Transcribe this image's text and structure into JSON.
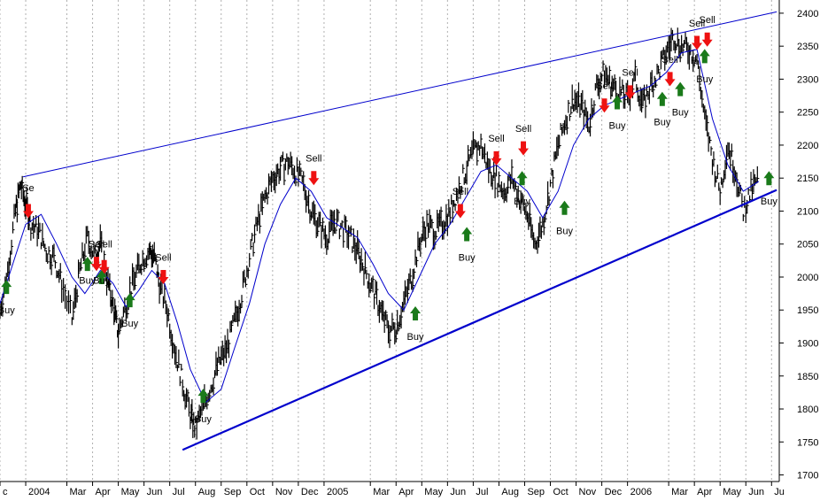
{
  "chart_data": {
    "type": "line",
    "title": "",
    "xlabel": "",
    "ylabel": "",
    "ylim": [
      1690,
      2420
    ],
    "grid": "vertical dotted",
    "y_axis_position": "right",
    "x_range": [
      0,
      30.3
    ],
    "y_ticks": [
      1700,
      1750,
      1800,
      1850,
      1900,
      1950,
      2000,
      2050,
      2100,
      2150,
      2200,
      2250,
      2300,
      2350,
      2400
    ],
    "x_ticks": [
      {
        "label": "c",
        "x": 0
      },
      {
        "label": "2004",
        "x": 1
      },
      {
        "label": "Mar",
        "x": 2.6
      },
      {
        "label": "Apr",
        "x": 3.6
      },
      {
        "label": "May",
        "x": 4.6
      },
      {
        "label": "Jun",
        "x": 5.6
      },
      {
        "label": "Jul",
        "x": 6.6
      },
      {
        "label": "Aug",
        "x": 7.6
      },
      {
        "label": "Sep",
        "x": 8.6
      },
      {
        "label": "Oct",
        "x": 9.6
      },
      {
        "label": "Nov",
        "x": 10.6
      },
      {
        "label": "Dec",
        "x": 11.6
      },
      {
        "label": "2005",
        "x": 12.6
      },
      {
        "label": "Mar",
        "x": 14.4
      },
      {
        "label": "Apr",
        "x": 15.4
      },
      {
        "label": "May",
        "x": 16.4
      },
      {
        "label": "Jun",
        "x": 17.4
      },
      {
        "label": "Jul",
        "x": 18.4
      },
      {
        "label": "Aug",
        "x": 19.4
      },
      {
        "label": "Sep",
        "x": 20.4
      },
      {
        "label": "Oct",
        "x": 21.4
      },
      {
        "label": "Nov",
        "x": 22.4
      },
      {
        "label": "Dec",
        "x": 23.4
      },
      {
        "label": "2006",
        "x": 24.4
      },
      {
        "label": "Mar",
        "x": 26
      },
      {
        "label": "Apr",
        "x": 27
      },
      {
        "label": "May",
        "x": 28
      },
      {
        "label": "Jun",
        "x": 29
      },
      {
        "label": "Ju",
        "x": 30
      }
    ],
    "series": [
      {
        "name": "",
        "color": "#000000",
        "kind": "price bars",
        "points": [
          [
            0,
            1950
          ],
          [
            0.3,
            2010
          ],
          [
            0.6,
            2100
          ],
          [
            0.8,
            2140
          ],
          [
            1,
            2110
          ],
          [
            1.2,
            2080
          ],
          [
            1.5,
            2070
          ],
          [
            1.8,
            2040
          ],
          [
            2.1,
            2030
          ],
          [
            2.4,
            1990
          ],
          [
            2.8,
            1935
          ],
          [
            3.1,
            2010
          ],
          [
            3.4,
            2060
          ],
          [
            3.7,
            2030
          ],
          [
            3.9,
            2050
          ],
          [
            4.2,
            1990
          ],
          [
            4.4,
            1955
          ],
          [
            4.6,
            1915
          ],
          [
            4.9,
            1960
          ],
          [
            5.2,
            1995
          ],
          [
            5.5,
            2025
          ],
          [
            5.8,
            2040
          ],
          [
            6.0,
            2030
          ],
          [
            6.2,
            1990
          ],
          [
            6.5,
            1950
          ],
          [
            6.8,
            1890
          ],
          [
            7.1,
            1840
          ],
          [
            7.4,
            1790
          ],
          [
            7.6,
            1770
          ],
          [
            7.9,
            1805
          ],
          [
            8.2,
            1835
          ],
          [
            8.5,
            1870
          ],
          [
            8.8,
            1890
          ],
          [
            9.1,
            1930
          ],
          [
            9.4,
            1975
          ],
          [
            9.7,
            2030
          ],
          [
            10,
            2080
          ],
          [
            10.3,
            2120
          ],
          [
            10.6,
            2150
          ],
          [
            10.9,
            2165
          ],
          [
            11.2,
            2175
          ],
          [
            11.5,
            2160
          ],
          [
            11.8,
            2140
          ],
          [
            12.1,
            2100
          ],
          [
            12.4,
            2080
          ],
          [
            12.7,
            2060
          ],
          [
            13,
            2085
          ],
          [
            13.3,
            2075
          ],
          [
            13.6,
            2060
          ],
          [
            13.9,
            2040
          ],
          [
            14.2,
            2010
          ],
          [
            14.5,
            1980
          ],
          [
            14.8,
            1950
          ],
          [
            15.1,
            1920
          ],
          [
            15.4,
            1925
          ],
          [
            15.7,
            1960
          ],
          [
            16,
            2000
          ],
          [
            16.3,
            2050
          ],
          [
            16.6,
            2080
          ],
          [
            16.9,
            2070
          ],
          [
            17.2,
            2080
          ],
          [
            17.5,
            2100
          ],
          [
            17.8,
            2130
          ],
          [
            18.1,
            2160
          ],
          [
            18.4,
            2190
          ],
          [
            18.7,
            2200
          ],
          [
            19,
            2165
          ],
          [
            19.3,
            2150
          ],
          [
            19.6,
            2130
          ],
          [
            19.9,
            2150
          ],
          [
            20.2,
            2120
          ],
          [
            20.5,
            2095
          ],
          [
            20.8,
            2050
          ],
          [
            21.1,
            2080
          ],
          [
            21.4,
            2140
          ],
          [
            21.7,
            2200
          ],
          [
            22,
            2240
          ],
          [
            22.3,
            2270
          ],
          [
            22.6,
            2260
          ],
          [
            22.9,
            2230
          ],
          [
            23.2,
            2290
          ],
          [
            23.5,
            2310
          ],
          [
            23.8,
            2290
          ],
          [
            24.1,
            2280
          ],
          [
            24.4,
            2270
          ],
          [
            24.7,
            2300
          ],
          [
            25,
            2260
          ],
          [
            25.3,
            2290
          ],
          [
            25.6,
            2310
          ],
          [
            25.9,
            2340
          ],
          [
            26.2,
            2365
          ],
          [
            26.5,
            2350
          ],
          [
            26.8,
            2345
          ],
          [
            27.1,
            2330
          ],
          [
            27.4,
            2240
          ],
          [
            27.7,
            2180
          ],
          [
            28,
            2130
          ],
          [
            28.3,
            2200
          ],
          [
            28.6,
            2160
          ],
          [
            28.9,
            2100
          ],
          [
            29.2,
            2130
          ],
          [
            29.5,
            2150
          ]
        ]
      },
      {
        "name": "",
        "color": "#0000cc",
        "kind": "moving average",
        "points": [
          [
            0,
            1960
          ],
          [
            0.5,
            2020
          ],
          [
            1,
            2080
          ],
          [
            1.6,
            2095
          ],
          [
            2.2,
            2050
          ],
          [
            2.8,
            2000
          ],
          [
            3.3,
            1975
          ],
          [
            3.9,
            2010
          ],
          [
            4.4,
            1990
          ],
          [
            4.9,
            1955
          ],
          [
            5.4,
            1980
          ],
          [
            5.9,
            2010
          ],
          [
            6.4,
            1990
          ],
          [
            6.9,
            1930
          ],
          [
            7.4,
            1860
          ],
          [
            8,
            1810
          ],
          [
            8.6,
            1830
          ],
          [
            9.1,
            1890
          ],
          [
            9.7,
            1960
          ],
          [
            10.3,
            2050
          ],
          [
            10.9,
            2110
          ],
          [
            11.5,
            2150
          ],
          [
            12.1,
            2130
          ],
          [
            12.7,
            2090
          ],
          [
            13.3,
            2075
          ],
          [
            13.9,
            2060
          ],
          [
            14.5,
            2020
          ],
          [
            15.1,
            1975
          ],
          [
            15.7,
            1950
          ],
          [
            16.3,
            2000
          ],
          [
            16.9,
            2050
          ],
          [
            17.5,
            2080
          ],
          [
            18.1,
            2120
          ],
          [
            18.7,
            2160
          ],
          [
            19.3,
            2170
          ],
          [
            19.9,
            2150
          ],
          [
            20.5,
            2130
          ],
          [
            21.1,
            2090
          ],
          [
            21.7,
            2130
          ],
          [
            22.3,
            2200
          ],
          [
            22.9,
            2240
          ],
          [
            23.5,
            2260
          ],
          [
            24.1,
            2270
          ],
          [
            24.7,
            2280
          ],
          [
            25.3,
            2290
          ],
          [
            25.9,
            2310
          ],
          [
            26.5,
            2340
          ],
          [
            27.1,
            2345
          ],
          [
            27.7,
            2240
          ],
          [
            28.3,
            2170
          ],
          [
            28.9,
            2130
          ],
          [
            29.5,
            2145
          ]
        ]
      },
      {
        "name": "",
        "color": "#0000cc",
        "kind": "upper trendline",
        "points": [
          [
            0.9,
            2152
          ],
          [
            30.2,
            2402
          ]
        ]
      },
      {
        "name": "",
        "color": "#0000cc",
        "kind": "lower trendline",
        "points": [
          [
            7.1,
            1738
          ],
          [
            30.2,
            2132
          ]
        ]
      }
    ],
    "signals": [
      {
        "type": "buy",
        "label": "Buy",
        "x": 0.25,
        "y": 1985,
        "label_y": 1945
      },
      {
        "type": "sell",
        "label": "Se",
        "x": 1.1,
        "y": 2100,
        "label_y": 2130
      },
      {
        "type": "buy",
        "label": "Buy",
        "x": 3.4,
        "y": 2020,
        "label_y": 1990
      },
      {
        "type": "sell",
        "label": "Sell",
        "x": 3.75,
        "y": 2020,
        "label_y": 2045
      },
      {
        "type": "sell",
        "label": "Sell",
        "x": 4.05,
        "y": 2015,
        "label_y": 2045
      },
      {
        "type": "buy",
        "label": "Buy",
        "x": 3.95,
        "y": 2000,
        "label_y": 1990
      },
      {
        "type": "buy",
        "label": "Buy",
        "x": 5.05,
        "y": 1965,
        "label_y": 1925
      },
      {
        "type": "sell",
        "label": "Sell",
        "x": 6.35,
        "y": 2000,
        "label_y": 2025
      },
      {
        "type": "buy",
        "label": "Buy",
        "x": 7.9,
        "y": 1820,
        "label_y": 1780
      },
      {
        "type": "sell",
        "label": "Sell",
        "x": 12.2,
        "y": 2150,
        "label_y": 2175
      },
      {
        "type": "buy",
        "label": "Buy",
        "x": 16.15,
        "y": 1945,
        "label_y": 1905
      },
      {
        "type": "sell",
        "label": "Sell",
        "x": 17.9,
        "y": 2100,
        "label_y": 2125
      },
      {
        "type": "buy",
        "label": "Buy",
        "x": 18.15,
        "y": 2065,
        "label_y": 2025
      },
      {
        "type": "sell",
        "label": "Sell",
        "x": 19.3,
        "y": 2180,
        "label_y": 2205
      },
      {
        "type": "sell",
        "label": "Sell",
        "x": 20.35,
        "y": 2195,
        "label_y": 2220
      },
      {
        "type": "buy",
        "label": "Buy",
        "x": 20.3,
        "y": 2150,
        "label_y": 2110
      },
      {
        "type": "buy",
        "label": "Buy",
        "x": 21.95,
        "y": 2105,
        "label_y": 2065
      },
      {
        "type": "sell",
        "label": "Sell",
        "x": 23.5,
        "y": 2260,
        "label_y": 2285
      },
      {
        "type": "buy",
        "label": "Buy",
        "x": 24.0,
        "y": 2265,
        "label_y": 2225
      },
      {
        "type": "sell",
        "label": "Sell",
        "x": 24.5,
        "y": 2280,
        "label_y": 2305
      },
      {
        "type": "buy",
        "label": "Buy",
        "x": 25.75,
        "y": 2270,
        "label_y": 2230
      },
      {
        "type": "sell",
        "label": "Sell",
        "x": 26.05,
        "y": 2300,
        "label_y": 2325
      },
      {
        "type": "buy",
        "label": "Buy",
        "x": 26.45,
        "y": 2285,
        "label_y": 2245
      },
      {
        "type": "sell",
        "label": "Sell",
        "x": 27.1,
        "y": 2355,
        "label_y": 2380
      },
      {
        "type": "sell",
        "label": "Sell",
        "x": 27.5,
        "y": 2360,
        "label_y": 2385
      },
      {
        "type": "buy",
        "label": "Buy",
        "x": 27.4,
        "y": 2335,
        "label_y": 2295
      },
      {
        "type": "buy",
        "label": "Buy",
        "x": 29.9,
        "y": 2150,
        "label_y": 2110
      }
    ]
  }
}
